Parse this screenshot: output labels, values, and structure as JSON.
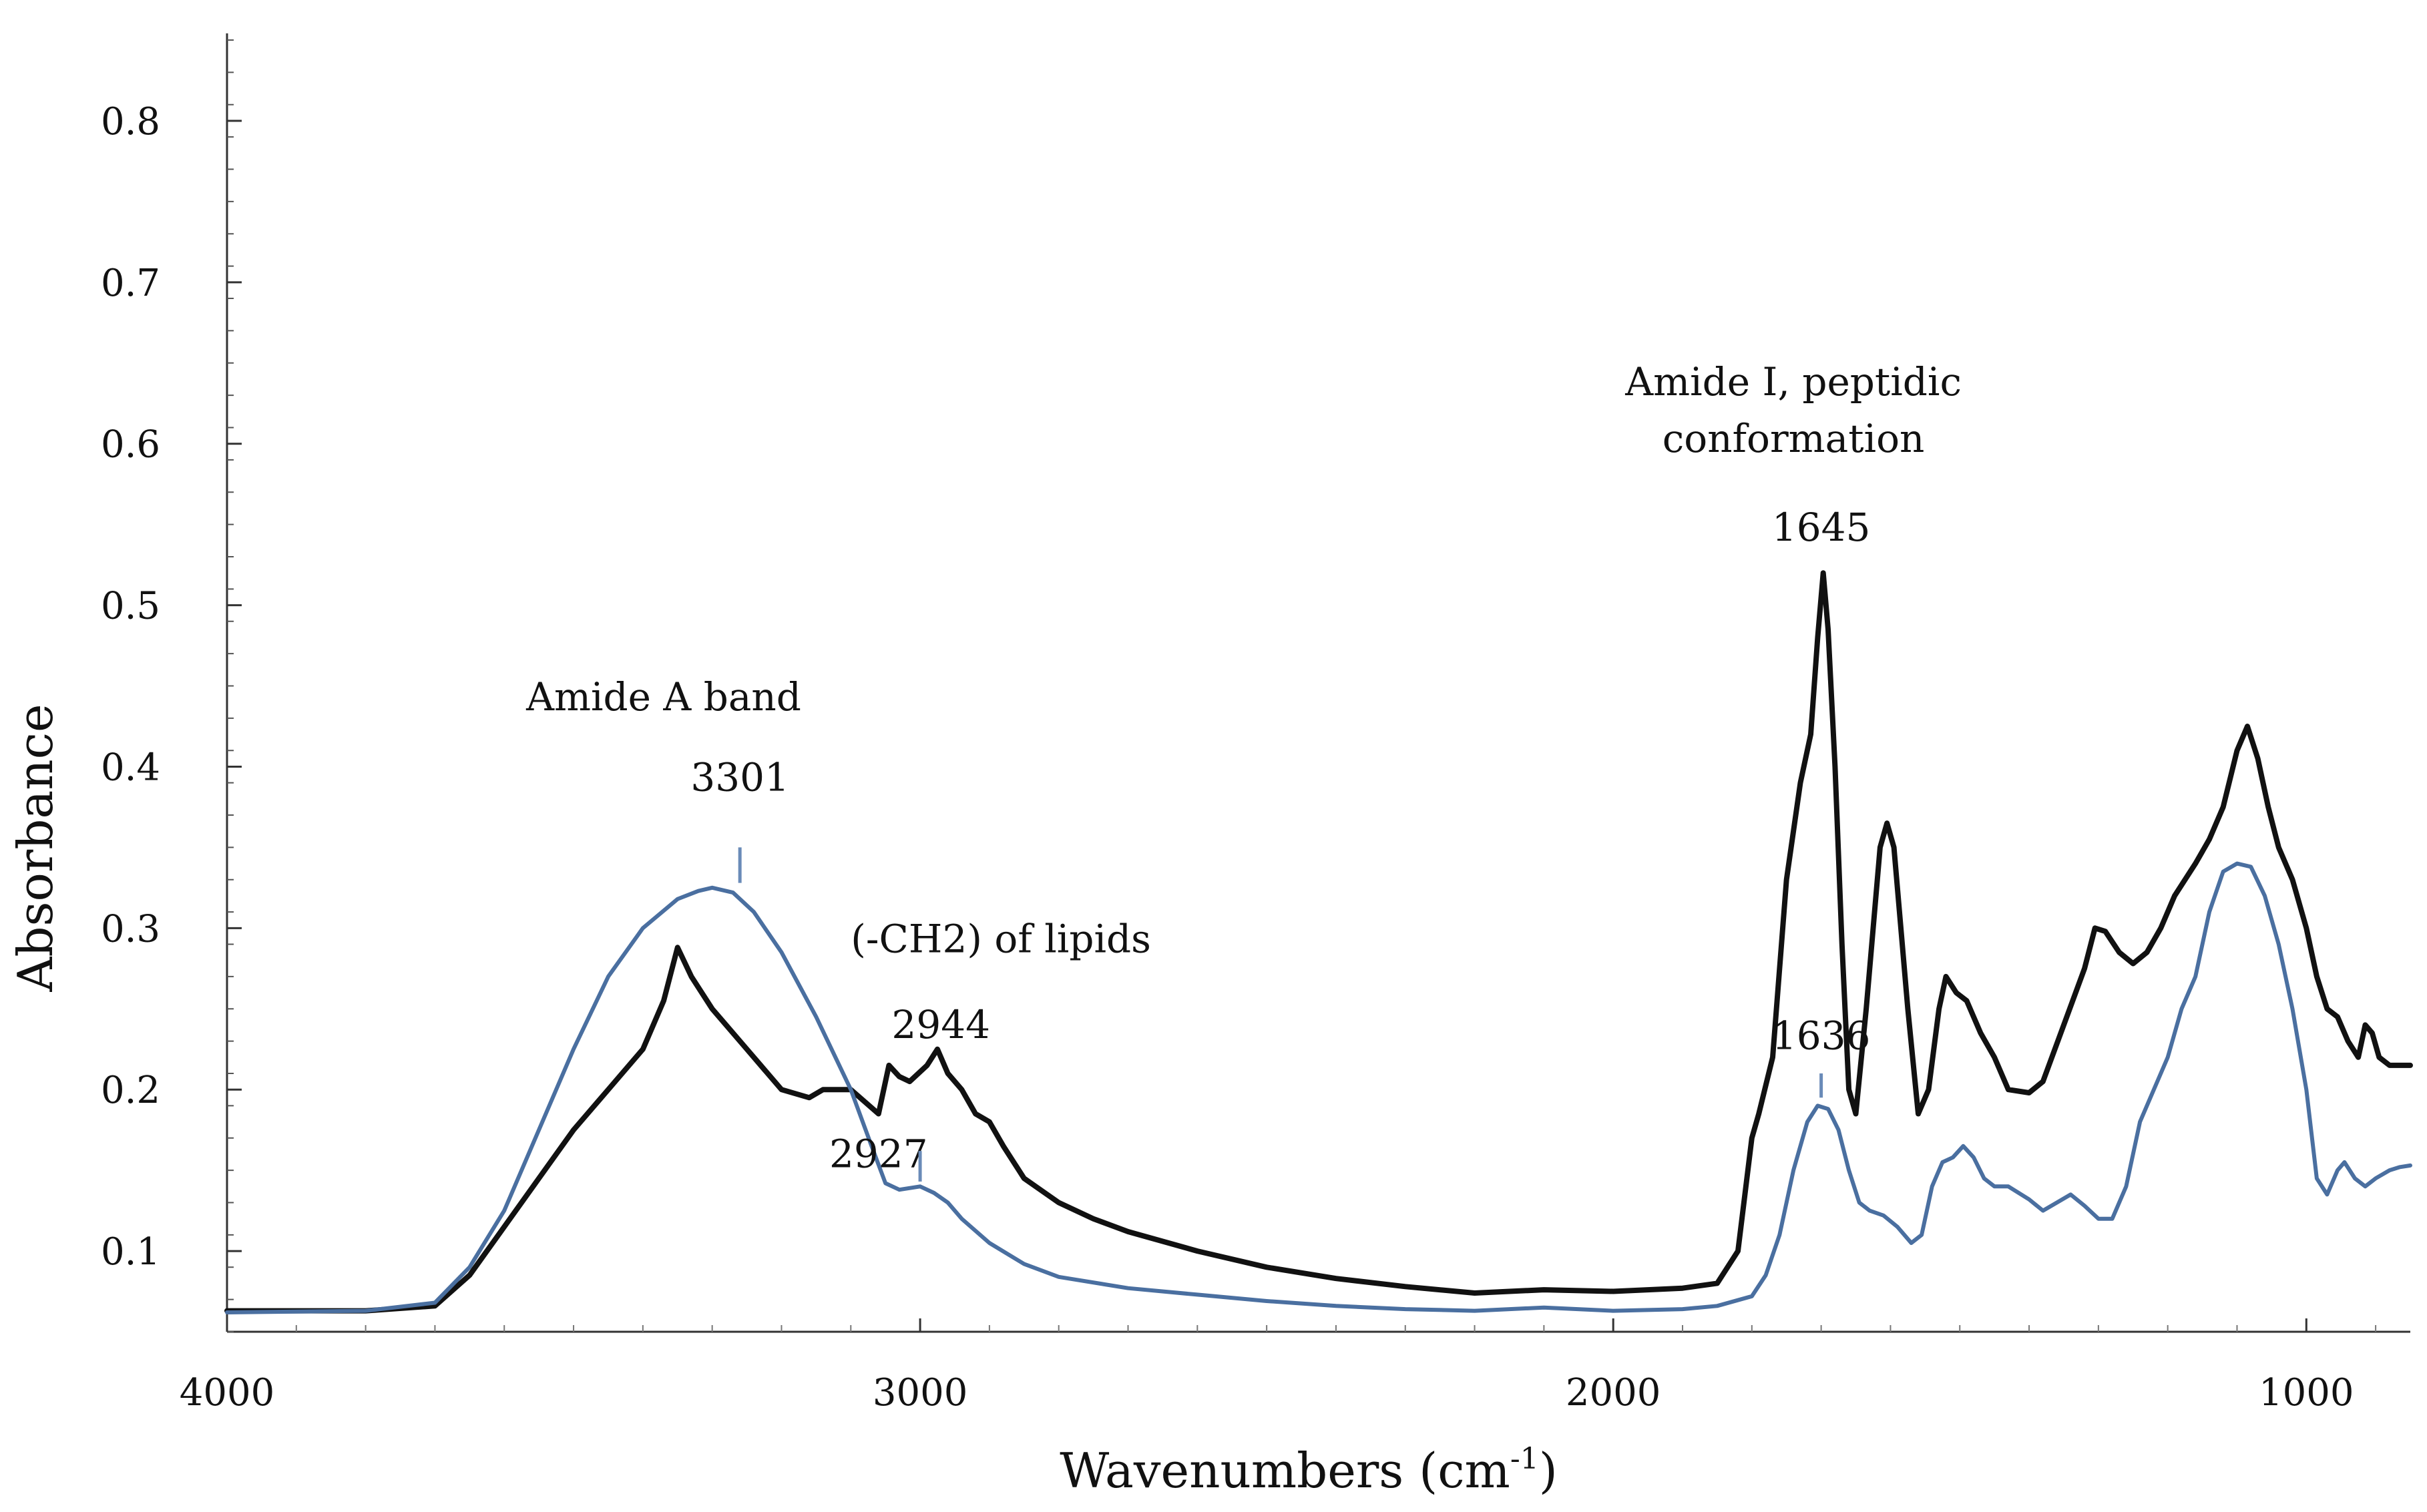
{
  "chart_data": {
    "type": "line",
    "title": "",
    "xlabel": "Wavenumbers (cm",
    "xlabel_sup": "-1",
    "xlabel_close": ")",
    "ylabel": "Absorbance",
    "xlim": [
      4000,
      850
    ],
    "ylim": [
      0.05,
      0.85
    ],
    "x_ticks": [
      4000,
      3000,
      2000,
      1000
    ],
    "x_tick_labels": [
      "4000",
      "3000",
      "2000",
      "1000"
    ],
    "y_ticks": [
      0.1,
      0.2,
      0.3,
      0.4,
      0.5,
      0.6,
      0.7,
      0.8
    ],
    "y_tick_labels": [
      "0.1",
      "0.2",
      "0.3",
      "0.4",
      "0.5",
      "0.6",
      "0.7",
      "0.8"
    ],
    "grid": false,
    "series": [
      {
        "name": "black",
        "color": "#111111",
        "points": [
          [
            4000,
            0.063
          ],
          [
            3800,
            0.063
          ],
          [
            3700,
            0.066
          ],
          [
            3650,
            0.085
          ],
          [
            3600,
            0.115
          ],
          [
            3550,
            0.145
          ],
          [
            3500,
            0.175
          ],
          [
            3450,
            0.2
          ],
          [
            3400,
            0.225
          ],
          [
            3370,
            0.255
          ],
          [
            3350,
            0.288
          ],
          [
            3330,
            0.27
          ],
          [
            3300,
            0.25
          ],
          [
            3250,
            0.225
          ],
          [
            3200,
            0.2
          ],
          [
            3160,
            0.195
          ],
          [
            3140,
            0.2
          ],
          [
            3100,
            0.2
          ],
          [
            3060,
            0.185
          ],
          [
            3045,
            0.215
          ],
          [
            3030,
            0.208
          ],
          [
            3015,
            0.205
          ],
          [
            2990,
            0.215
          ],
          [
            2975,
            0.225
          ],
          [
            2960,
            0.21
          ],
          [
            2940,
            0.2
          ],
          [
            2920,
            0.185
          ],
          [
            2900,
            0.18
          ],
          [
            2880,
            0.165
          ],
          [
            2850,
            0.145
          ],
          [
            2800,
            0.13
          ],
          [
            2750,
            0.12
          ],
          [
            2700,
            0.112
          ],
          [
            2600,
            0.1
          ],
          [
            2500,
            0.09
          ],
          [
            2400,
            0.083
          ],
          [
            2300,
            0.078
          ],
          [
            2200,
            0.074
          ],
          [
            2100,
            0.076
          ],
          [
            2000,
            0.075
          ],
          [
            1900,
            0.077
          ],
          [
            1850,
            0.08
          ],
          [
            1820,
            0.1
          ],
          [
            1800,
            0.17
          ],
          [
            1790,
            0.185
          ],
          [
            1770,
            0.22
          ],
          [
            1750,
            0.33
          ],
          [
            1730,
            0.39
          ],
          [
            1715,
            0.42
          ],
          [
            1705,
            0.48
          ],
          [
            1697,
            0.52
          ],
          [
            1690,
            0.485
          ],
          [
            1680,
            0.4
          ],
          [
            1670,
            0.29
          ],
          [
            1660,
            0.2
          ],
          [
            1650,
            0.185
          ],
          [
            1635,
            0.25
          ],
          [
            1615,
            0.35
          ],
          [
            1605,
            0.365
          ],
          [
            1595,
            0.35
          ],
          [
            1575,
            0.25
          ],
          [
            1560,
            0.185
          ],
          [
            1545,
            0.2
          ],
          [
            1530,
            0.25
          ],
          [
            1520,
            0.27
          ],
          [
            1505,
            0.26
          ],
          [
            1490,
            0.255
          ],
          [
            1470,
            0.235
          ],
          [
            1450,
            0.22
          ],
          [
            1430,
            0.2
          ],
          [
            1400,
            0.198
          ],
          [
            1380,
            0.205
          ],
          [
            1350,
            0.24
          ],
          [
            1320,
            0.275
          ],
          [
            1305,
            0.3
          ],
          [
            1290,
            0.298
          ],
          [
            1270,
            0.285
          ],
          [
            1250,
            0.278
          ],
          [
            1230,
            0.285
          ],
          [
            1210,
            0.3
          ],
          [
            1190,
            0.32
          ],
          [
            1160,
            0.34
          ],
          [
            1140,
            0.355
          ],
          [
            1120,
            0.375
          ],
          [
            1100,
            0.41
          ],
          [
            1085,
            0.425
          ],
          [
            1070,
            0.405
          ],
          [
            1055,
            0.375
          ],
          [
            1040,
            0.35
          ],
          [
            1020,
            0.33
          ],
          [
            1000,
            0.3
          ],
          [
            985,
            0.27
          ],
          [
            970,
            0.25
          ],
          [
            955,
            0.245
          ],
          [
            940,
            0.23
          ],
          [
            925,
            0.22
          ],
          [
            915,
            0.24
          ],
          [
            905,
            0.235
          ],
          [
            895,
            0.22
          ],
          [
            880,
            0.215
          ],
          [
            865,
            0.215
          ],
          [
            850,
            0.215
          ]
        ]
      },
      {
        "name": "blue",
        "color": "#4a6fa0",
        "points": [
          [
            4000,
            0.062
          ],
          [
            3800,
            0.063
          ],
          [
            3700,
            0.068
          ],
          [
            3650,
            0.09
          ],
          [
            3600,
            0.125
          ],
          [
            3550,
            0.175
          ],
          [
            3500,
            0.225
          ],
          [
            3450,
            0.27
          ],
          [
            3400,
            0.3
          ],
          [
            3350,
            0.318
          ],
          [
            3320,
            0.323
          ],
          [
            3300,
            0.325
          ],
          [
            3270,
            0.322
          ],
          [
            3240,
            0.31
          ],
          [
            3200,
            0.285
          ],
          [
            3150,
            0.245
          ],
          [
            3100,
            0.2
          ],
          [
            3070,
            0.165
          ],
          [
            3050,
            0.142
          ],
          [
            3030,
            0.138
          ],
          [
            3000,
            0.14
          ],
          [
            2980,
            0.136
          ],
          [
            2960,
            0.13
          ],
          [
            2940,
            0.12
          ],
          [
            2900,
            0.105
          ],
          [
            2850,
            0.092
          ],
          [
            2800,
            0.084
          ],
          [
            2700,
            0.077
          ],
          [
            2600,
            0.073
          ],
          [
            2500,
            0.069
          ],
          [
            2400,
            0.066
          ],
          [
            2300,
            0.064
          ],
          [
            2200,
            0.063
          ],
          [
            2100,
            0.065
          ],
          [
            2000,
            0.063
          ],
          [
            1900,
            0.064
          ],
          [
            1850,
            0.066
          ],
          [
            1800,
            0.072
          ],
          [
            1780,
            0.085
          ],
          [
            1760,
            0.11
          ],
          [
            1740,
            0.15
          ],
          [
            1720,
            0.18
          ],
          [
            1705,
            0.19
          ],
          [
            1690,
            0.188
          ],
          [
            1675,
            0.175
          ],
          [
            1660,
            0.15
          ],
          [
            1645,
            0.13
          ],
          [
            1630,
            0.125
          ],
          [
            1610,
            0.122
          ],
          [
            1590,
            0.115
          ],
          [
            1570,
            0.105
          ],
          [
            1555,
            0.11
          ],
          [
            1540,
            0.14
          ],
          [
            1525,
            0.155
          ],
          [
            1510,
            0.158
          ],
          [
            1495,
            0.165
          ],
          [
            1480,
            0.158
          ],
          [
            1465,
            0.145
          ],
          [
            1450,
            0.14
          ],
          [
            1430,
            0.14
          ],
          [
            1400,
            0.132
          ],
          [
            1380,
            0.125
          ],
          [
            1360,
            0.13
          ],
          [
            1340,
            0.135
          ],
          [
            1320,
            0.128
          ],
          [
            1300,
            0.12
          ],
          [
            1280,
            0.12
          ],
          [
            1260,
            0.14
          ],
          [
            1240,
            0.18
          ],
          [
            1220,
            0.2
          ],
          [
            1200,
            0.22
          ],
          [
            1180,
            0.25
          ],
          [
            1160,
            0.27
          ],
          [
            1140,
            0.31
          ],
          [
            1120,
            0.335
          ],
          [
            1100,
            0.34
          ],
          [
            1080,
            0.338
          ],
          [
            1060,
            0.32
          ],
          [
            1040,
            0.29
          ],
          [
            1020,
            0.25
          ],
          [
            1000,
            0.2
          ],
          [
            985,
            0.145
          ],
          [
            970,
            0.135
          ],
          [
            955,
            0.15
          ],
          [
            945,
            0.155
          ],
          [
            930,
            0.145
          ],
          [
            915,
            0.14
          ],
          [
            900,
            0.145
          ],
          [
            880,
            0.15
          ],
          [
            865,
            0.152
          ],
          [
            850,
            0.153
          ]
        ]
      }
    ],
    "annotations": [
      {
        "text": "Amide A band",
        "x": 3370,
        "y": 0.435,
        "anchor": "middle"
      },
      {
        "text": "3301",
        "x": 3260,
        "y": 0.385,
        "anchor": "middle",
        "marker_y": [
          0.328,
          0.35
        ]
      },
      {
        "text": "(-CH2) of lipids",
        "x": 3100,
        "y": 0.285,
        "anchor": "start"
      },
      {
        "text": "2944",
        "x": 2970,
        "y": 0.232,
        "anchor": "middle"
      },
      {
        "text": "2927",
        "x": 3060,
        "y": 0.152,
        "anchor": "middle",
        "marker_x": 3000,
        "marker_y": [
          0.143,
          0.162
        ]
      },
      {
        "text": "Amide I,  peptidic",
        "x": 1740,
        "y": 0.63,
        "anchor": "middle"
      },
      {
        "text": "conformation",
        "x": 1740,
        "y": 0.595,
        "anchor": "middle"
      },
      {
        "text": "1645",
        "x": 1700,
        "y": 0.54,
        "anchor": "middle"
      },
      {
        "text": "1636",
        "x": 1700,
        "y": 0.225,
        "anchor": "middle",
        "marker_x": 1700,
        "marker_y": [
          0.195,
          0.21
        ]
      }
    ]
  }
}
